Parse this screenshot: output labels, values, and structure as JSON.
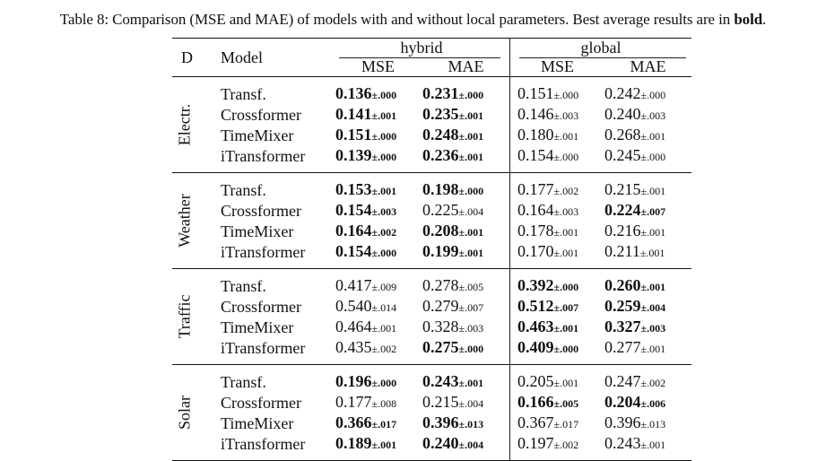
{
  "caption": {
    "prefix": "Table 8: Comparison (MSE and MAE) of models with and without local parameters. Best average results are in ",
    "bold_word": "bold",
    "suffix": "."
  },
  "header": {
    "d_label": "D",
    "model_label": "Model",
    "groups": [
      "hybrid",
      "global"
    ],
    "metrics": [
      "MSE",
      "MAE",
      "MSE",
      "MAE"
    ]
  },
  "datasets": [
    {
      "name": "Electr.",
      "rows": [
        {
          "model": "Transf.",
          "cells": [
            [
              "0.136",
              "±.000",
              true
            ],
            [
              "0.231",
              "±.000",
              true
            ],
            [
              "0.151",
              "±.000",
              false
            ],
            [
              "0.242",
              "±.000",
              false
            ]
          ]
        },
        {
          "model": "Crossformer",
          "cells": [
            [
              "0.141",
              "±.001",
              true
            ],
            [
              "0.235",
              "±.001",
              true
            ],
            [
              "0.146",
              "±.003",
              false
            ],
            [
              "0.240",
              "±.003",
              false
            ]
          ]
        },
        {
          "model": "TimeMixer",
          "cells": [
            [
              "0.151",
              "±.000",
              true
            ],
            [
              "0.248",
              "±.001",
              true
            ],
            [
              "0.180",
              "±.001",
              false
            ],
            [
              "0.268",
              "±.001",
              false
            ]
          ]
        },
        {
          "model": "iTransformer",
          "cells": [
            [
              "0.139",
              "±.000",
              true
            ],
            [
              "0.236",
              "±.001",
              true
            ],
            [
              "0.154",
              "±.000",
              false
            ],
            [
              "0.245",
              "±.000",
              false
            ]
          ]
        }
      ]
    },
    {
      "name": "Weather",
      "rows": [
        {
          "model": "Transf.",
          "cells": [
            [
              "0.153",
              "±.001",
              true
            ],
            [
              "0.198",
              "±.000",
              true
            ],
            [
              "0.177",
              "±.002",
              false
            ],
            [
              "0.215",
              "±.001",
              false
            ]
          ]
        },
        {
          "model": "Crossformer",
          "cells": [
            [
              "0.154",
              "±.003",
              true
            ],
            [
              "0.225",
              "±.004",
              false
            ],
            [
              "0.164",
              "±.003",
              false
            ],
            [
              "0.224",
              "±.007",
              true
            ]
          ]
        },
        {
          "model": "TimeMixer",
          "cells": [
            [
              "0.164",
              "±.002",
              true
            ],
            [
              "0.208",
              "±.001",
              true
            ],
            [
              "0.178",
              "±.001",
              false
            ],
            [
              "0.216",
              "±.001",
              false
            ]
          ]
        },
        {
          "model": "iTransformer",
          "cells": [
            [
              "0.154",
              "±.000",
              true
            ],
            [
              "0.199",
              "±.001",
              true
            ],
            [
              "0.170",
              "±.001",
              false
            ],
            [
              "0.211",
              "±.001",
              false
            ]
          ]
        }
      ]
    },
    {
      "name": "Traffic",
      "rows": [
        {
          "model": "Transf.",
          "cells": [
            [
              "0.417",
              "±.009",
              false
            ],
            [
              "0.278",
              "±.005",
              false
            ],
            [
              "0.392",
              "±.000",
              true
            ],
            [
              "0.260",
              "±.001",
              true
            ]
          ]
        },
        {
          "model": "Crossformer",
          "cells": [
            [
              "0.540",
              "±.014",
              false
            ],
            [
              "0.279",
              "±.007",
              false
            ],
            [
              "0.512",
              "±.007",
              true
            ],
            [
              "0.259",
              "±.004",
              true
            ]
          ]
        },
        {
          "model": "TimeMixer",
          "cells": [
            [
              "0.464",
              "±.001",
              false
            ],
            [
              "0.328",
              "±.003",
              false
            ],
            [
              "0.463",
              "±.001",
              true
            ],
            [
              "0.327",
              "±.003",
              true
            ]
          ]
        },
        {
          "model": "iTransformer",
          "cells": [
            [
              "0.435",
              "±.002",
              false
            ],
            [
              "0.275",
              "±.000",
              true
            ],
            [
              "0.409",
              "±.000",
              true
            ],
            [
              "0.277",
              "±.001",
              false
            ]
          ]
        }
      ]
    },
    {
      "name": "Solar",
      "rows": [
        {
          "model": "Transf.",
          "cells": [
            [
              "0.196",
              "±.000",
              true
            ],
            [
              "0.243",
              "±.001",
              true
            ],
            [
              "0.205",
              "±.001",
              false
            ],
            [
              "0.247",
              "±.002",
              false
            ]
          ]
        },
        {
          "model": "Crossformer",
          "cells": [
            [
              "0.177",
              "±.008",
              false
            ],
            [
              "0.215",
              "±.004",
              false
            ],
            [
              "0.166",
              "±.005",
              true
            ],
            [
              "0.204",
              "±.006",
              true
            ]
          ]
        },
        {
          "model": "TimeMixer",
          "cells": [
            [
              "0.366",
              "±.017",
              true
            ],
            [
              "0.396",
              "±.013",
              true
            ],
            [
              "0.367",
              "±.017",
              false
            ],
            [
              "0.396",
              "±.013",
              false
            ]
          ]
        },
        {
          "model": "iTransformer",
          "cells": [
            [
              "0.189",
              "±.001",
              true
            ],
            [
              "0.240",
              "±.004",
              true
            ],
            [
              "0.197",
              "±.002",
              false
            ],
            [
              "0.243",
              "±.001",
              false
            ]
          ]
        }
      ]
    }
  ]
}
